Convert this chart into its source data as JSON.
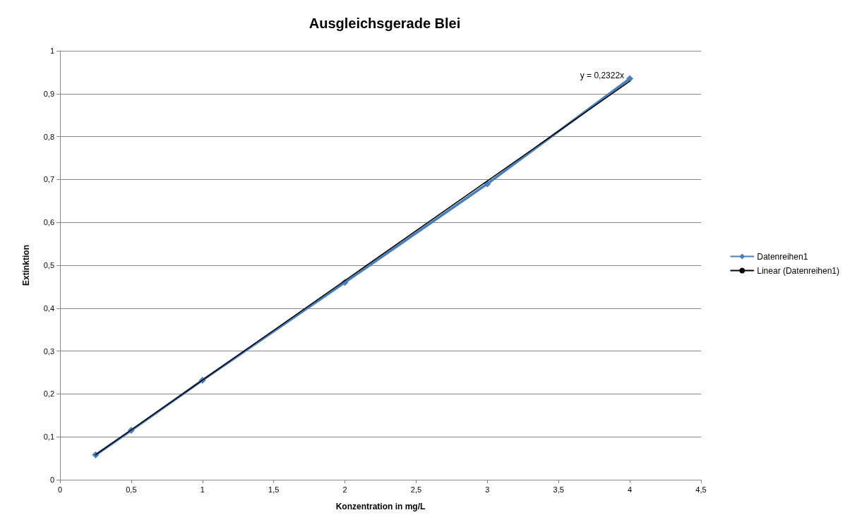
{
  "chart_data": {
    "type": "line",
    "title": "Ausgleichsgerade Blei",
    "xlabel": "Konzentration in mg/L",
    "ylabel": "Extinktion",
    "x": [
      0.25,
      0.5,
      1,
      2,
      3,
      4
    ],
    "series": [
      {
        "name": "Datenreihen1",
        "color": "#4a7ebb",
        "values": [
          0.058,
          0.115,
          0.232,
          0.46,
          0.69,
          0.935
        ],
        "marker": "diamond"
      },
      {
        "name": "Linear (Datenreihen1)",
        "type": "line",
        "color": "#000000",
        "x": [
          0.25,
          4
        ],
        "values": [
          0.058,
          0.929
        ],
        "marker": "none"
      }
    ],
    "xlim": [
      0,
      4.5
    ],
    "xticks": [
      0,
      {
        "value": 0.5,
        "label": "0,5"
      },
      1,
      {
        "value": 1.5,
        "label": "1,5"
      },
      2,
      {
        "value": 2.5,
        "label": "2,5"
      },
      3,
      {
        "value": 3.5,
        "label": "3,5"
      },
      4,
      {
        "value": 4.5,
        "label": "4,5"
      }
    ],
    "ylim": [
      0,
      1
    ],
    "yticks": [
      0,
      {
        "value": 0.1,
        "label": "0,1"
      },
      {
        "value": 0.2,
        "label": "0,2"
      },
      {
        "value": 0.3,
        "label": "0,3"
      },
      {
        "value": 0.4,
        "label": "0,4"
      },
      {
        "value": 0.5,
        "label": "0,5"
      },
      {
        "value": 0.6,
        "label": "0,6"
      },
      {
        "value": 0.7,
        "label": "0,7"
      },
      {
        "value": 0.8,
        "label": "0,8"
      },
      {
        "value": 0.9,
        "label": "0,9"
      },
      1
    ],
    "annotations": [
      {
        "text": "y = 0,2322x",
        "x": 4,
        "y": 0.93
      }
    ],
    "grid": "y",
    "legend": "right",
    "line_style": "solid"
  }
}
